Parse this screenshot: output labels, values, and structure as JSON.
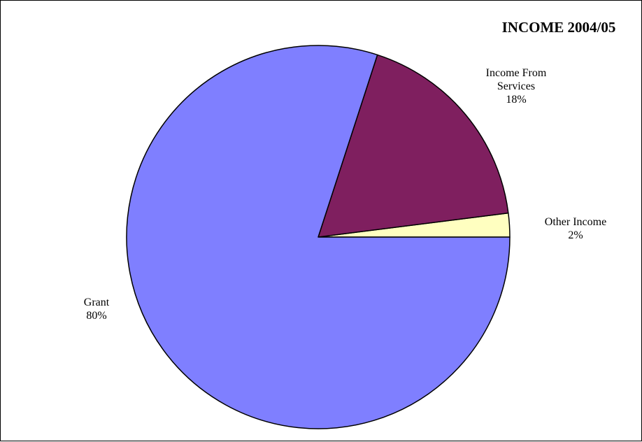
{
  "chart_data": {
    "type": "pie",
    "title": "INCOME 2004/05",
    "slices": [
      {
        "label": "Other Income",
        "value": 2,
        "percent_label": "2%",
        "color": "#FFFFC0"
      },
      {
        "label": "Income From Services",
        "label_lines": [
          "Income From",
          "Services"
        ],
        "value": 18,
        "percent_label": "18%",
        "color": "#7F1F5F"
      },
      {
        "label": "Grant",
        "value": 80,
        "percent_label": "80%",
        "color": "#7F7FFF"
      }
    ],
    "slice_outline_color": "#000000",
    "legend": "none"
  }
}
